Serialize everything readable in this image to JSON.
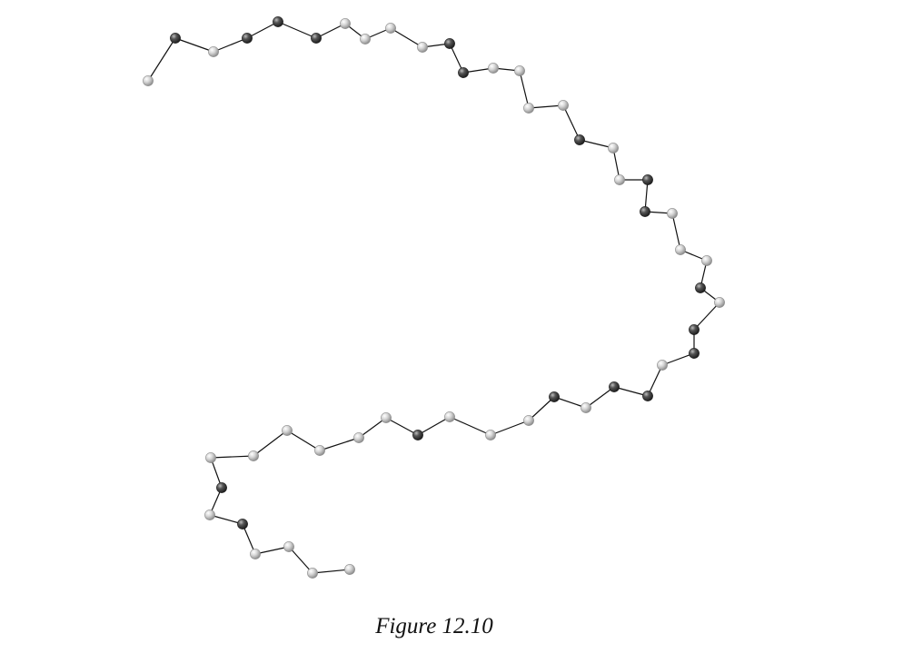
{
  "figure": {
    "caption": "Figure 12.10"
  },
  "legend_colors": {
    "light_bead": "#c4c4c4",
    "dark_bead": "#3a3a3a",
    "bond": "#111111"
  },
  "beads": [
    {
      "kind": "light"
    },
    {
      "kind": "dark"
    },
    {
      "kind": "light"
    },
    {
      "kind": "dark"
    },
    {
      "kind": "dark"
    },
    {
      "kind": "dark"
    },
    {
      "kind": "light"
    },
    {
      "kind": "light"
    },
    {
      "kind": "light"
    },
    {
      "kind": "light"
    },
    {
      "kind": "dark"
    },
    {
      "kind": "dark"
    },
    {
      "kind": "light"
    },
    {
      "kind": "light"
    },
    {
      "kind": "light"
    },
    {
      "kind": "light"
    },
    {
      "kind": "dark"
    },
    {
      "kind": "light"
    },
    {
      "kind": "light"
    },
    {
      "kind": "dark"
    },
    {
      "kind": "dark"
    },
    {
      "kind": "light"
    },
    {
      "kind": "light"
    },
    {
      "kind": "light"
    },
    {
      "kind": "dark"
    },
    {
      "kind": "light"
    },
    {
      "kind": "dark"
    },
    {
      "kind": "dark"
    },
    {
      "kind": "light"
    },
    {
      "kind": "dark"
    },
    {
      "kind": "dark"
    },
    {
      "kind": "light"
    },
    {
      "kind": "dark"
    },
    {
      "kind": "light"
    },
    {
      "kind": "light"
    },
    {
      "kind": "light"
    },
    {
      "kind": "dark"
    },
    {
      "kind": "light"
    },
    {
      "kind": "light"
    },
    {
      "kind": "light"
    },
    {
      "kind": "light"
    },
    {
      "kind": "light"
    },
    {
      "kind": "light"
    },
    {
      "kind": "dark"
    },
    {
      "kind": "light"
    },
    {
      "kind": "dark"
    },
    {
      "kind": "light"
    },
    {
      "kind": "light"
    },
    {
      "kind": "light"
    },
    {
      "kind": "light"
    }
  ]
}
